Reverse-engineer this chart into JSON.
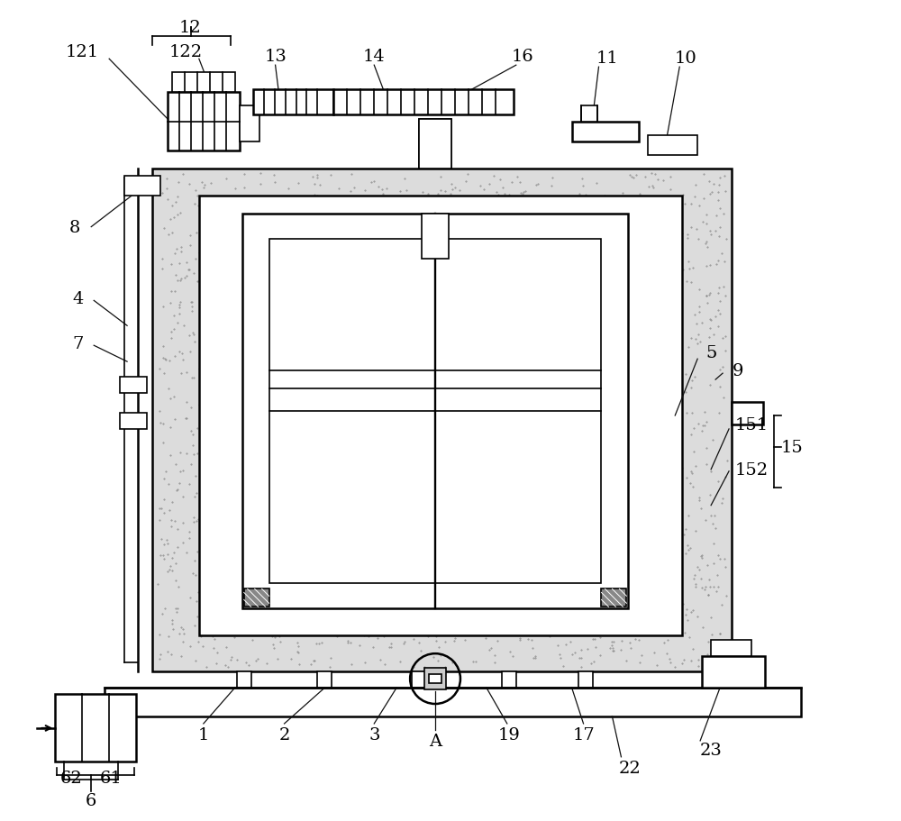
{
  "bg_color": "#ffffff",
  "line_color": "#000000",
  "label_color": "#000000",
  "fig_width": 10.0,
  "fig_height": 9.12,
  "dpi": 100
}
